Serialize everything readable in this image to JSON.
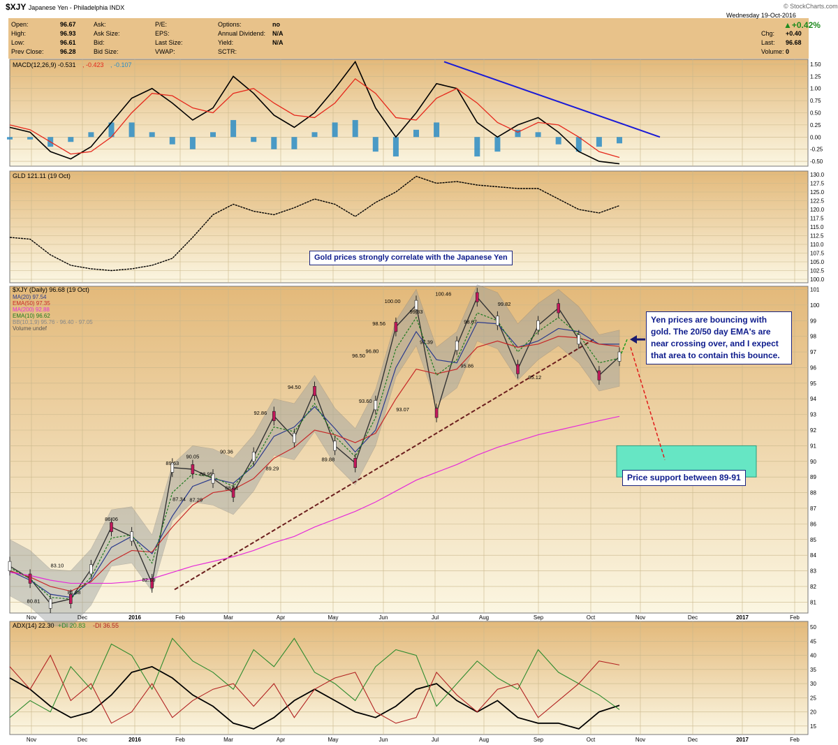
{
  "header": {
    "symbol": "$XJY",
    "name": "Japanese Yen - Philadelphia INDX",
    "date": "Wednesday 19-Oct-2016",
    "source": "© StockCharts.com",
    "change_pct": "▲+0.42%",
    "fields_left": [
      {
        "label": "Open:",
        "value": "96.67"
      },
      {
        "label": "High:",
        "value": "96.93"
      },
      {
        "label": "Low:",
        "value": "96.61"
      },
      {
        "label": "Prev Close:",
        "value": "96.28"
      }
    ],
    "fields_mid": [
      "Ask:",
      "Ask Size:",
      "Bid:",
      "Bid Size:"
    ],
    "fields_mid2": [
      "P/E:",
      "EPS:",
      "Last Size:",
      "VWAP:"
    ],
    "fields_right": [
      {
        "label": "Options:",
        "value": "no"
      },
      {
        "label": "Annual Dividend:",
        "value": "N/A"
      },
      {
        "label": "Yield:",
        "value": "N/A"
      },
      {
        "label": "SCTR:",
        "value": ""
      }
    ],
    "fields_far": [
      {
        "label": "Chg:",
        "value": "+0.40"
      },
      {
        "label": "Last:",
        "value": "96.68"
      },
      {
        "label": "Volume:",
        "value": "0"
      }
    ]
  },
  "colors": {
    "panel_bg": "#f8ecc8",
    "grid": "#c9b78b",
    "macd_line": "#000000",
    "signal_line": "#e5281c",
    "histogram": "#2b8cc4",
    "trend_blue": "#1a1ad6",
    "ma20": "#2a3a8c",
    "ema50": "#c62828",
    "ma200": "#e52cd8",
    "ema10": "#1e7a1e",
    "bb_fill": "#9aa0a0",
    "support_box": "#66e6c4",
    "pos_di": "#2e8b2e",
    "neg_di": "#b22222",
    "adx": "#000000",
    "note_text": "#0d1b8c"
  },
  "chart_data": [
    {
      "type": "line",
      "panel": "MACD",
      "label": "MACD(12,26,9) -0.531, -0.423, -0.107",
      "label_parts": [
        {
          "text": "MACD(12,26,9) -0.531",
          "color": "#000000"
        },
        {
          "text": ", -0.423",
          "color": "#e5281c"
        },
        {
          "text": ", -0.107",
          "color": "#2b8cc4"
        }
      ],
      "y_ticks": [
        "1.50",
        "1.25",
        "1.00",
        "0.75",
        "0.50",
        "0.25",
        "0.00",
        "-0.25",
        "-0.50"
      ],
      "ylim": [
        -0.6,
        1.6
      ],
      "x": [
        0,
        12,
        24,
        36,
        48,
        60,
        72,
        84,
        96,
        108,
        120,
        132,
        144,
        156,
        168,
        180,
        192,
        204,
        216,
        228,
        240,
        252,
        264,
        276,
        288,
        300,
        312,
        324,
        336,
        348,
        360
      ],
      "series": [
        {
          "name": "MACD",
          "values": [
            0.2,
            0.1,
            -0.3,
            -0.45,
            -0.2,
            0.3,
            0.8,
            1.0,
            0.7,
            0.35,
            0.6,
            1.25,
            0.9,
            0.45,
            0.2,
            0.5,
            1.0,
            1.55,
            0.6,
            0.0,
            0.5,
            1.1,
            1.0,
            0.3,
            0.0,
            0.25,
            0.4,
            0.1,
            -0.3,
            -0.5,
            -0.55
          ]
        },
        {
          "name": "Signal",
          "values": [
            0.25,
            0.15,
            -0.1,
            -0.35,
            -0.3,
            0.0,
            0.5,
            0.9,
            0.85,
            0.6,
            0.5,
            0.9,
            1.0,
            0.7,
            0.45,
            0.4,
            0.7,
            1.2,
            0.9,
            0.4,
            0.35,
            0.8,
            1.0,
            0.7,
            0.3,
            0.1,
            0.3,
            0.25,
            0.0,
            -0.3,
            -0.42
          ]
        }
      ],
      "annotation": "downward trendline from July high"
    },
    {
      "type": "line",
      "panel": "GLD",
      "label": "GLD 121.11 (19 Oct)",
      "y_ticks": [
        "130.0",
        "127.5",
        "125.0",
        "122.5",
        "120.0",
        "117.5",
        "115.0",
        "112.5",
        "110.0",
        "107.5",
        "105.0",
        "102.5",
        "100.0"
      ],
      "ylim": [
        99,
        131
      ],
      "x": [
        0,
        12,
        24,
        36,
        48,
        60,
        72,
        84,
        96,
        108,
        120,
        132,
        144,
        156,
        168,
        180,
        192,
        204,
        216,
        228,
        240,
        252,
        264,
        276,
        288,
        300,
        312,
        324,
        336,
        348,
        360
      ],
      "values": [
        112,
        111.5,
        107,
        104,
        103,
        102.5,
        103,
        104,
        106,
        112,
        118.5,
        121.5,
        119.5,
        118.5,
        120.5,
        123,
        121.5,
        118,
        122,
        125,
        129.5,
        127.5,
        128,
        127,
        126.5,
        126,
        126,
        123,
        120,
        119,
        121.1
      ]
    },
    {
      "type": "line",
      "panel": "XJY",
      "label": "$XJY (Daily) 96.68 (19 Oct)",
      "legend": [
        {
          "text": "MA(20) 97.54",
          "color": "#2a3a8c"
        },
        {
          "text": "EMA(50) 97.35",
          "color": "#c62828"
        },
        {
          "text": "MA(200) 92.88",
          "color": "#e52cd8"
        },
        {
          "text": "EMA(10) 96.62",
          "color": "#1e7a1e"
        },
        {
          "text": "BB(10,1,9) 95.76 - 96.40 - 97.05",
          "color": "#888888"
        },
        {
          "text": "Volume undef",
          "color": "#555555"
        }
      ],
      "y_ticks": [
        "101",
        "100",
        "99",
        "98",
        "97",
        "96",
        "95",
        "94",
        "93",
        "92",
        "91",
        "90",
        "89",
        "88",
        "87",
        "86",
        "85",
        "84",
        "83",
        "82",
        "81"
      ],
      "ylim": [
        80.3,
        101.2
      ],
      "x_labels": [
        "Nov",
        "Dec",
        "2016",
        "Feb",
        "Mar",
        "Apr",
        "May",
        "Jun",
        "Jul",
        "Aug",
        "Sep",
        "Oct",
        "Nov",
        "Dec",
        "2017",
        "Feb"
      ],
      "x": [
        0,
        12,
        24,
        36,
        48,
        60,
        72,
        84,
        96,
        108,
        120,
        132,
        144,
        156,
        168,
        180,
        192,
        204,
        216,
        228,
        240,
        252,
        264,
        276,
        288,
        300,
        312,
        324,
        336,
        348,
        360
      ],
      "series": [
        {
          "name": "$XJY",
          "values": [
            83.3,
            82.5,
            80.9,
            81.2,
            83.1,
            85.8,
            85.2,
            82.2,
            89.6,
            89.5,
            88.9,
            88.0,
            90.3,
            92.9,
            91.5,
            94.5,
            91.0,
            89.9,
            93.6,
            98.6,
            100.0,
            93.1,
            97.4,
            100.5,
            99.0,
            95.9,
            98.7,
            99.8,
            97.8,
            95.5,
            96.7
          ]
        },
        {
          "name": "MA(20)",
          "values": [
            83.0,
            82.4,
            81.5,
            81.3,
            82.4,
            84.5,
            85.2,
            84.1,
            86.5,
            88.4,
            88.9,
            88.6,
            89.7,
            91.6,
            92.2,
            93.5,
            92.1,
            90.6,
            92.0,
            96.0,
            98.3,
            96.5,
            96.3,
            98.9,
            98.8,
            97.3,
            97.7,
            98.5,
            98.3,
            97.5,
            97.5
          ]
        },
        {
          "name": "EMA(50)",
          "values": [
            83.0,
            82.6,
            82.0,
            81.7,
            82.3,
            83.6,
            84.3,
            84.2,
            85.8,
            87.2,
            88.0,
            88.2,
            88.9,
            90.2,
            90.9,
            92.0,
            91.7,
            91.2,
            91.8,
            94.0,
            95.9,
            95.6,
            95.9,
            97.3,
            97.7,
            97.3,
            97.5,
            98.0,
            97.9,
            97.5,
            97.35
          ]
        },
        {
          "name": "MA(200)",
          "values": [
            82.9,
            82.7,
            82.4,
            82.2,
            82.2,
            82.2,
            82.3,
            82.5,
            82.9,
            83.3,
            83.6,
            83.9,
            84.3,
            84.8,
            85.2,
            85.8,
            86.3,
            86.8,
            87.4,
            88.1,
            88.8,
            89.3,
            89.8,
            90.4,
            90.9,
            91.3,
            91.7,
            92.0,
            92.3,
            92.6,
            92.88
          ]
        },
        {
          "name": "EMA(10)",
          "values": [
            83.2,
            82.5,
            81.3,
            81.2,
            82.6,
            85.1,
            85.3,
            83.5,
            88.0,
            89.2,
            89.0,
            88.4,
            89.9,
            92.2,
            91.9,
            93.7,
            91.6,
            90.3,
            92.8,
            97.2,
            99.2,
            95.5,
            96.5,
            99.5,
            99.0,
            97.0,
            98.3,
            99.2,
            98.1,
            96.3,
            96.6
          ]
        }
      ],
      "data_labels": [
        {
          "x": 14,
          "value": "80.81"
        },
        {
          "x": 28,
          "value": "83.10"
        },
        {
          "x": 38,
          "value": "81.38"
        },
        {
          "x": 60,
          "value": "86.06"
        },
        {
          "x": 82,
          "value": "82.18"
        },
        {
          "x": 96,
          "value": "89.63"
        },
        {
          "x": 100,
          "value": "87.34"
        },
        {
          "x": 108,
          "value": "90.05"
        },
        {
          "x": 110,
          "value": "87.29"
        },
        {
          "x": 116,
          "value": "88.95"
        },
        {
          "x": 128,
          "value": "90.36"
        },
        {
          "x": 131,
          "value": "88.04"
        },
        {
          "x": 148,
          "value": "92.86"
        },
        {
          "x": 155,
          "value": "89.29"
        },
        {
          "x": 168,
          "value": "94.50"
        },
        {
          "x": 188,
          "value": "89.88"
        },
        {
          "x": 206,
          "value": "96.50"
        },
        {
          "x": 210,
          "value": "93.60"
        },
        {
          "x": 214,
          "value": "96.80"
        },
        {
          "x": 218,
          "value": "98.56"
        },
        {
          "x": 226,
          "value": "100.00"
        },
        {
          "x": 232,
          "value": "93.07"
        },
        {
          "x": 240,
          "value": "99.33"
        },
        {
          "x": 246,
          "value": "97.39"
        },
        {
          "x": 256,
          "value": "100.46"
        },
        {
          "x": 272,
          "value": "98.67"
        },
        {
          "x": 270,
          "value": "95.86"
        },
        {
          "x": 292,
          "value": "99.82"
        },
        {
          "x": 310,
          "value": "95.12"
        }
      ],
      "notes": {
        "gold": "Gold prices strongly correlate with the Japanese Yen",
        "yen": "Yen prices are bouncing with gold. The 20/50 day EMA's are near crossing over, and I expect that area to contain this bounce.",
        "support": "Price support between 89-91"
      },
      "support_range": [
        89,
        91
      ]
    },
    {
      "type": "line",
      "panel": "ADX",
      "label": "ADX(14) 22.30 +DI 20.83 -DI 36.55",
      "label_parts": [
        {
          "text": "ADX(14) 22.30",
          "color": "#000000"
        },
        {
          "text": " +DI 20.83",
          "color": "#2e8b2e"
        },
        {
          "text": " -DI 36.55",
          "color": "#b22222"
        }
      ],
      "y_ticks": [
        "50",
        "45",
        "40",
        "35",
        "30",
        "25",
        "20",
        "15"
      ],
      "ylim": [
        12,
        52
      ],
      "x_labels": [
        "Nov",
        "Dec",
        "2016",
        "Feb",
        "Mar",
        "Apr",
        "May",
        "Jun",
        "Jul",
        "Aug",
        "Sep",
        "Oct",
        "Nov",
        "Dec",
        "2017",
        "Feb"
      ],
      "x": [
        0,
        12,
        24,
        36,
        48,
        60,
        72,
        84,
        96,
        108,
        120,
        132,
        144,
        156,
        168,
        180,
        192,
        204,
        216,
        228,
        240,
        252,
        264,
        276,
        288,
        300,
        312,
        324,
        336,
        348,
        360
      ],
      "series": [
        {
          "name": "ADX",
          "values": [
            32,
            28,
            22,
            18,
            20,
            26,
            34,
            36,
            32,
            26,
            22,
            16,
            14,
            18,
            24,
            28,
            24,
            20,
            18,
            22,
            28,
            30,
            24,
            20,
            24,
            18,
            16,
            16,
            14,
            20,
            22.3
          ]
        },
        {
          "name": "+DI",
          "values": [
            18,
            24,
            20,
            36,
            28,
            44,
            40,
            28,
            46,
            38,
            34,
            28,
            42,
            36,
            46,
            34,
            30,
            24,
            36,
            42,
            40,
            22,
            30,
            38,
            32,
            28,
            42,
            34,
            30,
            26,
            20.8
          ]
        },
        {
          "name": "-DI",
          "values": [
            36,
            28,
            40,
            24,
            30,
            16,
            20,
            30,
            18,
            24,
            28,
            30,
            22,
            30,
            18,
            28,
            32,
            34,
            20,
            16,
            18,
            34,
            26,
            20,
            28,
            30,
            18,
            24,
            30,
            38,
            36.6
          ]
        }
      ]
    }
  ]
}
